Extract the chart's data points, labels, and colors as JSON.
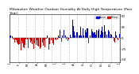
{
  "title": "Milwaukee Weather Outdoor Humidity At Daily High Temperature (Past Year)",
  "n_points": 365,
  "ylim": [
    -55,
    55
  ],
  "background_color": "#ffffff",
  "bar_color_above": "#0000dd",
  "bar_color_below": "#dd0000",
  "grid_color": "#bbbbbb",
  "n_gridlines": 13,
  "title_fontsize": 3.2,
  "tick_fontsize": 2.8,
  "seed": 42,
  "legend_blue_label": "Above",
  "legend_red_label": "Below"
}
